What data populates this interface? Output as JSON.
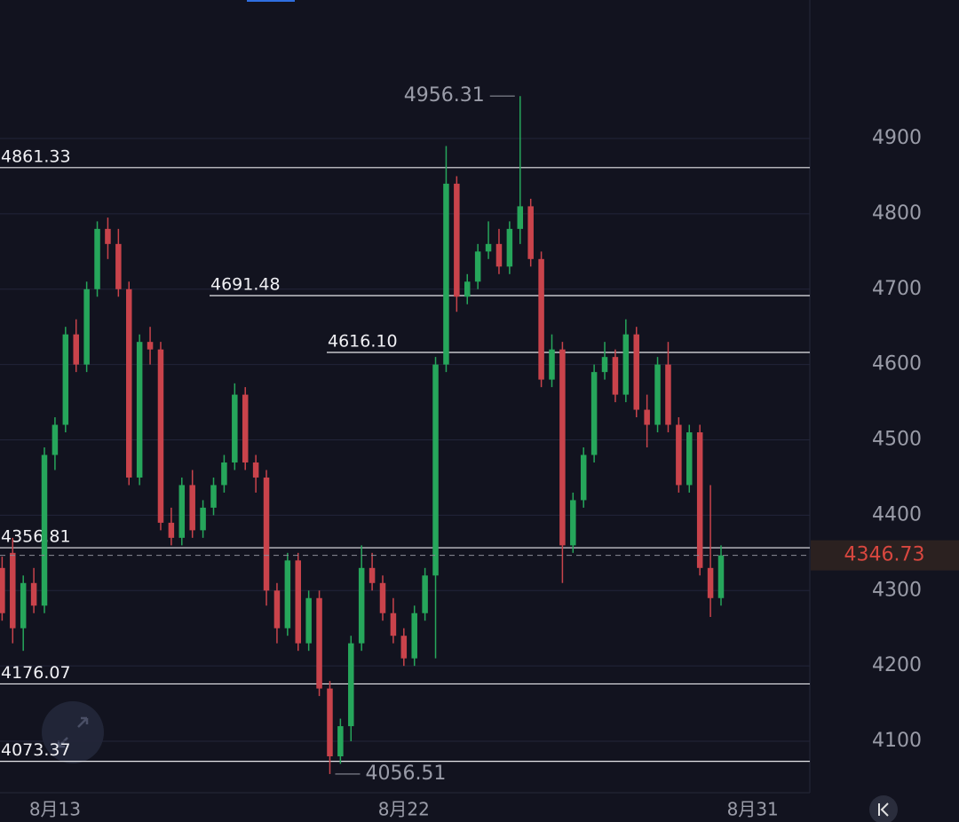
{
  "chart_data": {
    "type": "candlestick",
    "up_color": "#26a65b",
    "down_color": "#c9434b",
    "ylim": [
      4031.7,
      5083.8
    ],
    "yticks": [
      4100,
      4200,
      4300,
      4400,
      4500,
      4600,
      4700,
      4800,
      4900
    ],
    "xlim": [
      -0.2,
      76.4
    ],
    "xticks": [
      {
        "value": 5,
        "label": "8月13"
      },
      {
        "value": 38,
        "label": "8月22"
      },
      {
        "value": 71,
        "label": "8月31"
      }
    ],
    "grid": true,
    "levels": [
      4861.33,
      4691.48,
      {
        "value": 4616.1,
        "label": "4616.10"
      },
      4356.81,
      4176.07,
      4073.37
    ],
    "open": [
      4330,
      4350,
      4250,
      4310,
      4280,
      4480,
      4520,
      4640,
      4600,
      4700,
      4780,
      4760,
      4700,
      4450,
      4630,
      4620,
      4390,
      4370,
      4440,
      4380,
      4410,
      4440,
      4470,
      4560,
      4470,
      4450,
      4300,
      4250,
      4340,
      4230,
      4290,
      4170,
      4080,
      4120,
      4230,
      4330,
      4310,
      4270,
      4240,
      4210,
      4270,
      4320,
      4600,
      4840,
      4690,
      4710,
      4750,
      4760,
      4730,
      4780,
      4810,
      4740,
      4580,
      4620,
      4360,
      4420,
      4480,
      4590,
      4610,
      4560,
      4640,
      4540,
      4520,
      4600,
      4520,
      4440,
      4510,
      4330,
      4290
    ],
    "high": [
      4345,
      4370,
      4320,
      4330,
      4490,
      4530,
      4650,
      4660,
      4710,
      4790,
      4795,
      4780,
      4710,
      4640,
      4650,
      4630,
      4410,
      4450,
      4460,
      4420,
      4450,
      4480,
      4575,
      4570,
      4480,
      4460,
      4310,
      4350,
      4350,
      4300,
      4300,
      4180,
      4130,
      4240,
      4360,
      4350,
      4320,
      4290,
      4250,
      4280,
      4330,
      4610,
      4890,
      4850,
      4720,
      4760,
      4790,
      4780,
      4790,
      4956.31,
      4820,
      4750,
      4640,
      4630,
      4430,
      4490,
      4600,
      4630,
      4620,
      4660,
      4650,
      4560,
      4610,
      4630,
      4530,
      4520,
      4520,
      4440,
      4360
    ],
    "low": [
      4260,
      4230,
      4220,
      4270,
      4270,
      4460,
      4510,
      4590,
      4590,
      4690,
      4740,
      4690,
      4440,
      4440,
      4600,
      4380,
      4360,
      4360,
      4370,
      4370,
      4400,
      4430,
      4460,
      4460,
      4430,
      4280,
      4230,
      4240,
      4220,
      4220,
      4160,
      4056.51,
      4070,
      4100,
      4220,
      4300,
      4260,
      4230,
      4200,
      4200,
      4260,
      4210,
      4590,
      4670,
      4680,
      4700,
      4740,
      4720,
      4720,
      4760,
      4730,
      4570,
      4570,
      4310,
      4350,
      4410,
      4470,
      4580,
      4550,
      4550,
      4530,
      4490,
      4510,
      4510,
      4430,
      4430,
      4320,
      4265,
      4280
    ],
    "close": [
      4270,
      4250,
      4310,
      4280,
      4480,
      4520,
      4640,
      4600,
      4700,
      4780,
      4760,
      4700,
      4450,
      4630,
      4620,
      4390,
      4370,
      4440,
      4380,
      4410,
      4440,
      4470,
      4560,
      4470,
      4450,
      4300,
      4250,
      4340,
      4230,
      4290,
      4170,
      4080,
      4120,
      4230,
      4330,
      4310,
      4270,
      4240,
      4210,
      4270,
      4320,
      4600,
      4840,
      4690,
      4710,
      4750,
      4760,
      4730,
      4780,
      4810,
      4740,
      4580,
      4620,
      4360,
      4420,
      4480,
      4590,
      4610,
      4560,
      4640,
      4540,
      4520,
      4600,
      4520,
      4440,
      4510,
      4330,
      4290,
      4346.73
    ]
  }
}
